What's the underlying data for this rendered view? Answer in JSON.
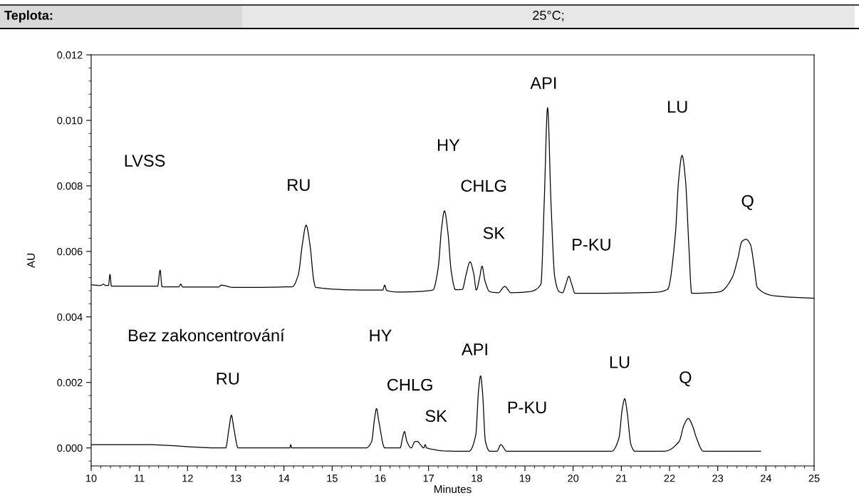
{
  "chart_data": {
    "type": "line",
    "xlabel": "Minutes",
    "ylabel": "AU",
    "xlim": [
      10,
      25
    ],
    "xticks": [
      10,
      11,
      12,
      13,
      14,
      15,
      16,
      17,
      18,
      19,
      20,
      21,
      22,
      23,
      24,
      25
    ],
    "ylim": [
      -0.00055,
      0.012
    ],
    "yticks": [
      {
        "value": 0,
        "label": "0.000"
      },
      {
        "value": 0.002,
        "label": "0.002"
      },
      {
        "value": 0.004,
        "label": "0.004"
      },
      {
        "value": 0.006,
        "label": "0.006"
      },
      {
        "value": 0.008,
        "label": "0.008"
      },
      {
        "value": 0.01,
        "label": "0.010"
      },
      {
        "value": 0.012,
        "label": "0.012"
      }
    ],
    "grid": false,
    "legend": false,
    "marker": "none",
    "line_style": "solid",
    "series": [
      {
        "color": "#000000",
        "x": [
          10,
          10.2,
          10.25,
          10.3,
          10.36,
          10.39,
          10.42,
          11.38,
          11.43,
          11.47,
          11.82,
          11.86,
          11.9,
          12.64,
          12.7,
          12.95,
          14.17,
          14.3,
          14.38,
          14.46,
          14.54,
          14.62,
          14.66,
          15.82,
          16.05,
          16.09,
          16.13,
          16.38,
          17.09,
          17.2,
          17.27,
          17.33,
          17.4,
          17.47,
          17.56,
          17.7,
          17.78,
          17.86,
          17.94,
          17.99,
          18.06,
          18.11,
          18.17,
          18.27,
          18.45,
          18.58,
          18.71,
          19.09,
          19.33,
          19.4,
          19.47,
          19.54,
          19.62,
          19.71,
          19.78,
          19.85,
          19.91,
          19.97,
          20.04,
          21.69,
          21.96,
          22.12,
          22.19,
          22.26,
          22.33,
          22.4,
          22.46,
          22.88,
          23.05,
          23.3,
          23.42,
          23.5,
          23.59,
          23.68,
          23.76,
          23.82,
          24.2,
          25
        ],
        "values": [
          0.00498,
          0.00496,
          0.005,
          0.00496,
          0.00496,
          0.0053,
          0.00494,
          0.00494,
          0.00543,
          0.00492,
          0.00492,
          0.005,
          0.00491,
          0.00491,
          0.00497,
          0.0049,
          0.00492,
          0.0053,
          0.0062,
          0.0068,
          0.0062,
          0.0051,
          0.0049,
          0.00482,
          0.00482,
          0.00497,
          0.00481,
          0.00476,
          0.00482,
          0.0055,
          0.0067,
          0.00724,
          0.0066,
          0.0054,
          0.00483,
          0.00484,
          0.0053,
          0.00568,
          0.0053,
          0.00482,
          0.0052,
          0.00555,
          0.0051,
          0.00477,
          0.00474,
          0.00493,
          0.00474,
          0.00477,
          0.00499,
          0.0075,
          0.01039,
          0.0075,
          0.0052,
          0.00477,
          0.00474,
          0.005,
          0.00524,
          0.005,
          0.00472,
          0.00475,
          0.00484,
          0.0065,
          0.0082,
          0.00893,
          0.0082,
          0.0062,
          0.00472,
          0.00474,
          0.00477,
          0.0052,
          0.0058,
          0.0063,
          0.00637,
          0.0062,
          0.0055,
          0.0049,
          0.00464,
          0.00457
        ]
      },
      {
        "color": "#000000",
        "x": [
          10,
          11.11,
          12.64,
          12.79,
          12.86,
          12.91,
          12.96,
          13.05,
          14.12,
          14.14,
          14.16,
          15.7,
          15.82,
          15.88,
          15.92,
          15.97,
          16.09,
          16.41,
          16.46,
          16.5,
          16.55,
          16.64,
          16.72,
          16.77,
          16.83,
          16.9,
          16.93,
          16.96,
          17.57,
          17.84,
          17.98,
          18.04,
          18.08,
          18.12,
          18.18,
          18.27,
          18.42,
          18.5,
          18.62,
          20.8,
          20.95,
          21.02,
          21.07,
          21.12,
          21.2,
          21.28,
          21.89,
          22.2,
          22.3,
          22.39,
          22.47,
          22.56,
          22.7,
          22.84,
          23.89
        ],
        "values": [
          0.0001,
          0.0001,
          0.0,
          0.0,
          0.0006,
          0.001,
          0.0006,
          0.0,
          0.0,
          0.0001,
          0.0,
          0.0,
          0.0002,
          0.0009,
          0.0012,
          0.0008,
          0.0,
          0.0,
          0.0003,
          0.0005,
          0.0002,
          0.0,
          0.0002,
          0.0002,
          0.0001,
          0.0,
          0.0001,
          0.0,
          -0.0001,
          -0.0001,
          0.0004,
          0.0018,
          0.0022,
          0.0017,
          0.0002,
          -0.0001,
          -0.0001,
          0.0001,
          -0.0001,
          -0.0001,
          0.0003,
          0.0012,
          0.0015,
          0.0011,
          0.0001,
          -0.0001,
          -0.0001,
          0.0002,
          0.0007,
          0.0009,
          0.0007,
          0.0003,
          -0.0001,
          -0.0001,
          -0.0001
        ]
      }
    ],
    "annotations": [
      "Teplota:",
      "25°C;",
      "LVSS",
      "RU",
      "HY",
      "CHLG",
      "SK",
      "API",
      "P-KU",
      "LU",
      "Q",
      "Bez zakoncentrování",
      "RU",
      "HY",
      "CHLG",
      "SK",
      "API",
      "P-KU",
      "LU",
      "Q"
    ]
  }
}
